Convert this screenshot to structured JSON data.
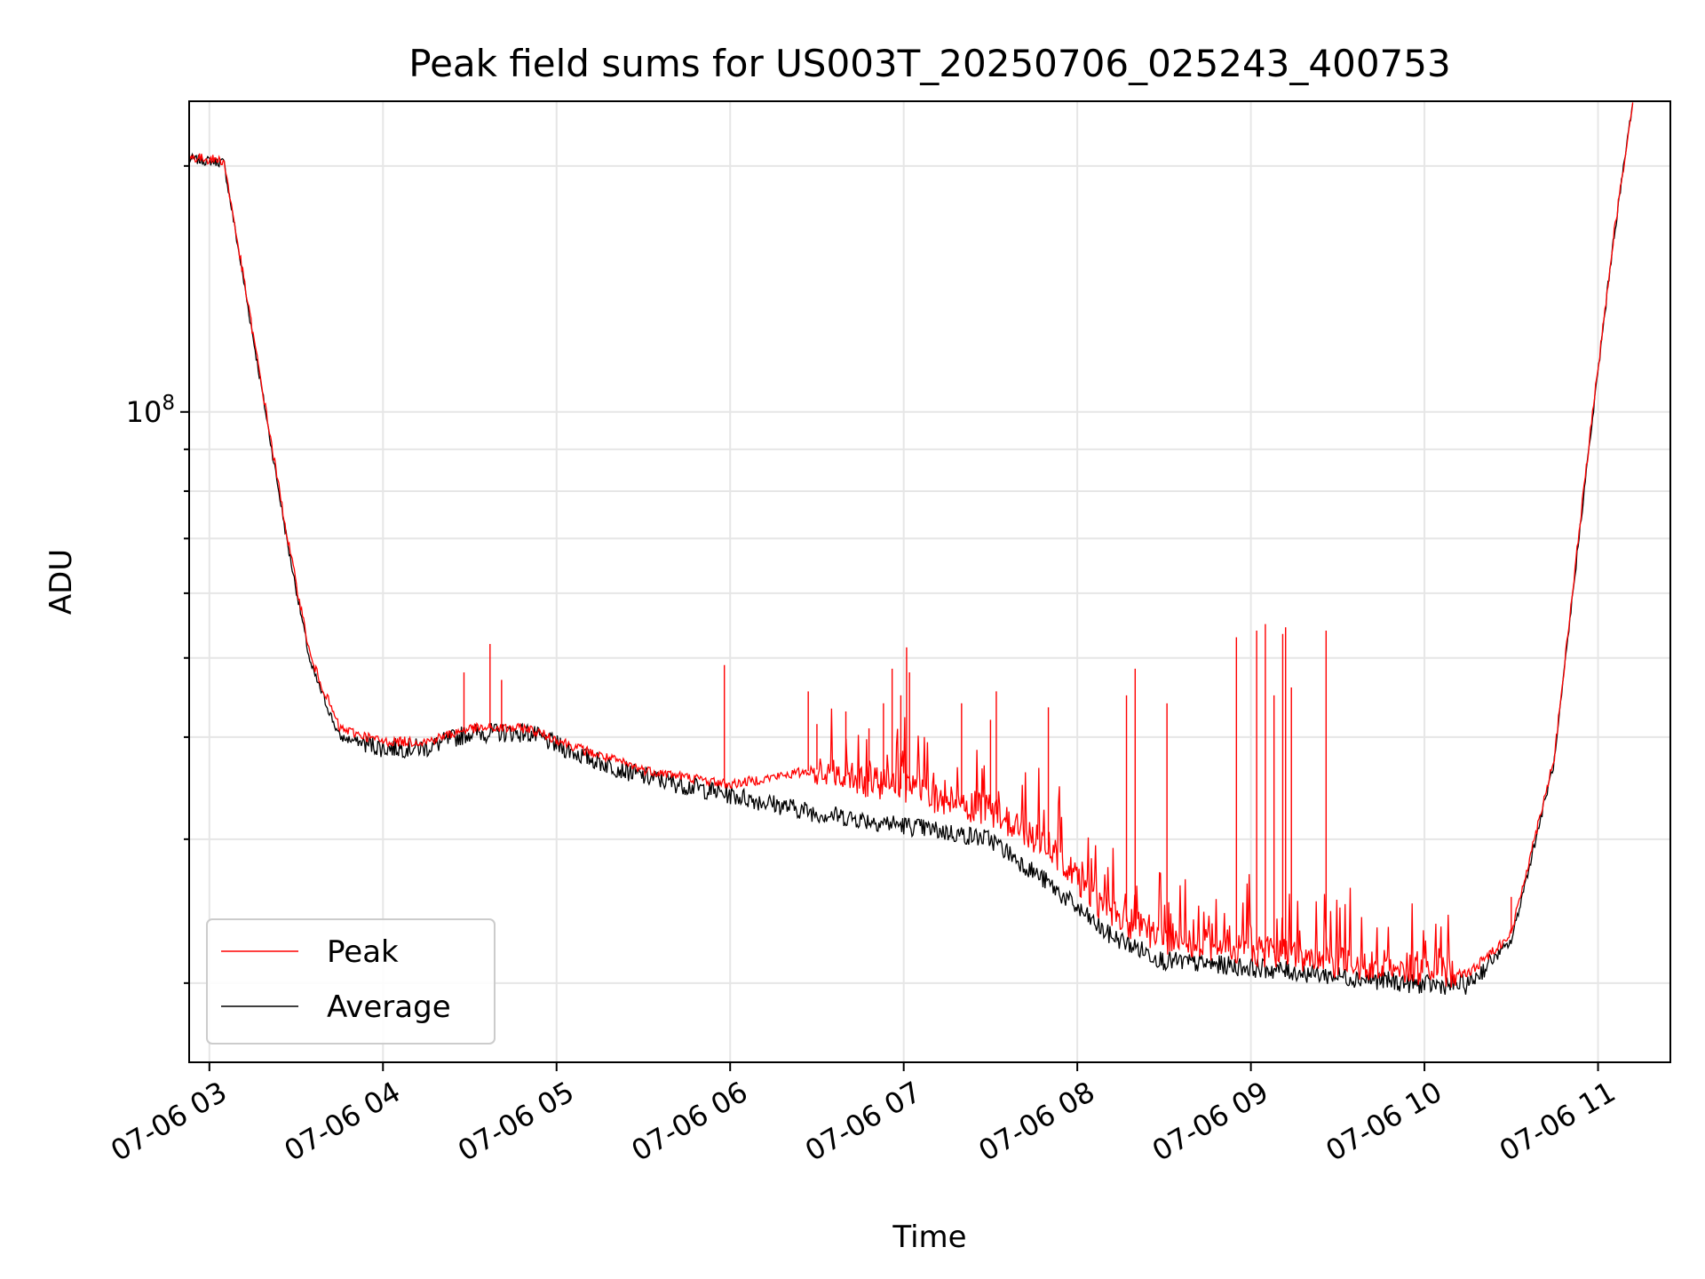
{
  "chart_data": {
    "type": "line",
    "title": "Peak field sums for US003T_20250706_025243_400753",
    "xlabel": "Time",
    "ylabel": "ADU",
    "x_range": [
      "2025-07-06 02:53",
      "2025-07-06 11:25"
    ],
    "x_ticks": [
      "07-06 03",
      "07-06 04",
      "07-06 05",
      "07-06 06",
      "07-06 07",
      "07-06 08",
      "07-06 09",
      "07-06 10",
      "07-06 11"
    ],
    "y_scale": "log",
    "ylim": [
      16000000,
      240000000
    ],
    "y_ticks": [
      {
        "value": 100000000,
        "base": "10",
        "exp": "8"
      }
    ],
    "grid": true,
    "legend_position": "lower-left",
    "series": [
      {
        "name": "Peak",
        "color": "#ff0000",
        "points": [
          [
            "2025-07-06 02:53",
            205000000
          ],
          [
            "2025-07-06 03:05",
            203000000
          ],
          [
            "2025-07-06 03:15",
            125000000
          ],
          [
            "2025-07-06 03:27",
            70000000
          ],
          [
            "2025-07-06 03:35",
            50000000
          ],
          [
            "2025-07-06 03:45",
            41000000
          ],
          [
            "2025-07-06 04:00",
            39500000
          ],
          [
            "2025-07-06 04:15",
            39500000
          ],
          [
            "2025-07-06 04:30",
            41000000
          ],
          [
            "2025-07-06 04:50",
            41000000
          ],
          [
            "2025-07-06 05:10",
            38500000
          ],
          [
            "2025-07-06 05:30",
            36500000
          ],
          [
            "2025-07-06 06:00",
            35000000
          ],
          [
            "2025-07-06 06:30",
            36500000
          ],
          [
            "2025-07-06 07:00",
            34500000
          ],
          [
            "2025-07-06 07:30",
            32500000
          ],
          [
            "2025-07-06 07:50",
            29500000
          ],
          [
            "2025-07-06 08:10",
            24500000
          ],
          [
            "2025-07-06 08:30",
            22500000
          ],
          [
            "2025-07-06 09:00",
            22000000
          ],
          [
            "2025-07-06 09:30",
            21200000
          ],
          [
            "2025-07-06 10:00",
            20800000
          ],
          [
            "2025-07-06 10:15",
            20500000
          ],
          [
            "2025-07-06 10:30",
            23000000
          ],
          [
            "2025-07-06 10:45",
            38000000
          ],
          [
            "2025-07-06 10:55",
            80000000
          ],
          [
            "2025-07-06 11:05",
            160000000
          ],
          [
            "2025-07-06 11:12",
            240000000
          ]
        ],
        "spikes": [
          [
            "2025-07-06 04:28",
            48000000
          ],
          [
            "2025-07-06 04:37",
            52000000
          ],
          [
            "2025-07-06 04:41",
            47000000
          ],
          [
            "2025-07-06 05:58",
            49000000
          ],
          [
            "2025-07-06 06:27",
            45500000
          ],
          [
            "2025-07-06 06:30",
            41500000
          ],
          [
            "2025-07-06 06:40",
            43000000
          ],
          [
            "2025-07-06 06:48",
            41000000
          ],
          [
            "2025-07-06 06:53",
            44000000
          ],
          [
            "2025-07-06 06:56",
            48500000
          ],
          [
            "2025-07-06 06:59",
            45000000
          ],
          [
            "2025-07-06 07:01",
            51500000
          ],
          [
            "2025-07-06 07:02",
            48000000
          ],
          [
            "2025-07-06 07:20",
            44000000
          ],
          [
            "2025-07-06 07:30",
            42000000
          ],
          [
            "2025-07-06 07:32",
            45500000
          ],
          [
            "2025-07-06 07:50",
            43500000
          ],
          [
            "2025-07-06 08:17",
            45000000
          ],
          [
            "2025-07-06 08:20",
            48500000
          ],
          [
            "2025-07-06 08:31",
            44000000
          ],
          [
            "2025-07-06 08:55",
            53000000
          ],
          [
            "2025-07-06 09:02",
            54000000
          ],
          [
            "2025-07-06 09:05",
            55000000
          ],
          [
            "2025-07-06 09:08",
            45000000
          ],
          [
            "2025-07-06 09:11",
            53500000
          ],
          [
            "2025-07-06 09:12",
            54500000
          ],
          [
            "2025-07-06 09:14",
            46000000
          ],
          [
            "2025-07-06 09:26",
            54000000
          ],
          [
            "2025-07-06 10:30",
            25500000
          ]
        ]
      },
      {
        "name": "Average",
        "color": "#000000",
        "points": [
          [
            "2025-07-06 02:53",
            204000000
          ],
          [
            "2025-07-06 03:05",
            202000000
          ],
          [
            "2025-07-06 03:15",
            124000000
          ],
          [
            "2025-07-06 03:27",
            69000000
          ],
          [
            "2025-07-06 03:35",
            49000000
          ],
          [
            "2025-07-06 03:45",
            40000000
          ],
          [
            "2025-07-06 04:00",
            38800000
          ],
          [
            "2025-07-06 04:15",
            38800000
          ],
          [
            "2025-07-06 04:30",
            40500000
          ],
          [
            "2025-07-06 04:50",
            40500000
          ],
          [
            "2025-07-06 05:10",
            37800000
          ],
          [
            "2025-07-06 05:30",
            35800000
          ],
          [
            "2025-07-06 06:00",
            34000000
          ],
          [
            "2025-07-06 06:30",
            32300000
          ],
          [
            "2025-07-06 07:00",
            31200000
          ],
          [
            "2025-07-06 07:30",
            30000000
          ],
          [
            "2025-07-06 07:50",
            26500000
          ],
          [
            "2025-07-06 08:10",
            23000000
          ],
          [
            "2025-07-06 08:30",
            21300000
          ],
          [
            "2025-07-06 09:00",
            20900000
          ],
          [
            "2025-07-06 09:30",
            20400000
          ],
          [
            "2025-07-06 10:00",
            19900000
          ],
          [
            "2025-07-06 10:15",
            19900000
          ],
          [
            "2025-07-06 10:30",
            22500000
          ],
          [
            "2025-07-06 10:45",
            37500000
          ],
          [
            "2025-07-06 10:55",
            79000000
          ],
          [
            "2025-07-06 11:05",
            159000000
          ],
          [
            "2025-07-06 11:12",
            240000000
          ]
        ]
      }
    ]
  }
}
